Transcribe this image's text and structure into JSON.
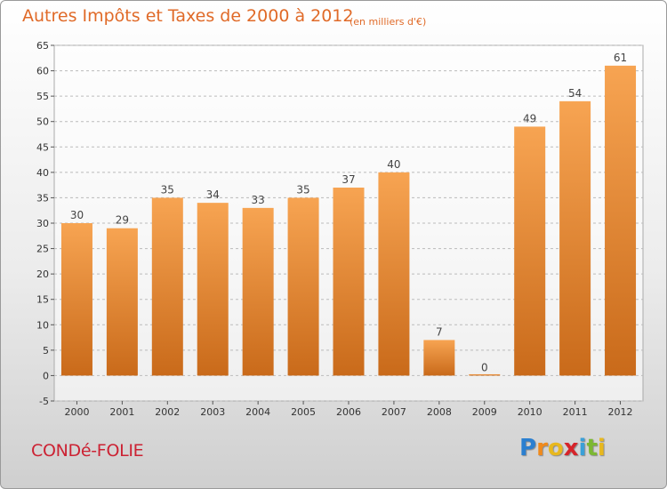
{
  "header": {
    "title": "Autres Impôts et Taxes de 2000 à 2012",
    "subtitle": "(en milliers d'€)"
  },
  "footer": {
    "commune": "CONDé-FOLIE",
    "brand_letters": [
      "P",
      "r",
      "o",
      "x",
      "i",
      "t",
      "i"
    ],
    "brand_colors": [
      "#2b7fd0",
      "#f08a1c",
      "#e8b81e",
      "#d6242a",
      "#3aa0d8",
      "#7cb833",
      "#e8b81e"
    ]
  },
  "chart_data": {
    "type": "bar",
    "title": "Autres Impôts et Taxes de 2000 à 2012",
    "subtitle": "(en milliers d'€)",
    "categories": [
      "2000",
      "2001",
      "2002",
      "2003",
      "2004",
      "2005",
      "2006",
      "2007",
      "2008",
      "2009",
      "2010",
      "2011",
      "2012"
    ],
    "values": [
      30,
      29,
      35,
      34,
      33,
      35,
      37,
      40,
      7,
      0,
      49,
      54,
      61
    ],
    "data_labels": [
      "30",
      "29",
      "35",
      "34",
      "33",
      "35",
      "37",
      "40",
      "7",
      "0",
      "49",
      "54",
      "61"
    ],
    "ylim": [
      -5,
      65
    ],
    "yticks": [
      -5,
      0,
      5,
      10,
      15,
      20,
      25,
      30,
      35,
      40,
      45,
      50,
      55,
      60,
      65
    ],
    "grid": true,
    "colors": {
      "bar_top": "#f7a452",
      "bar_bottom": "#c96a1a",
      "grid": "#bbbbbb"
    }
  }
}
